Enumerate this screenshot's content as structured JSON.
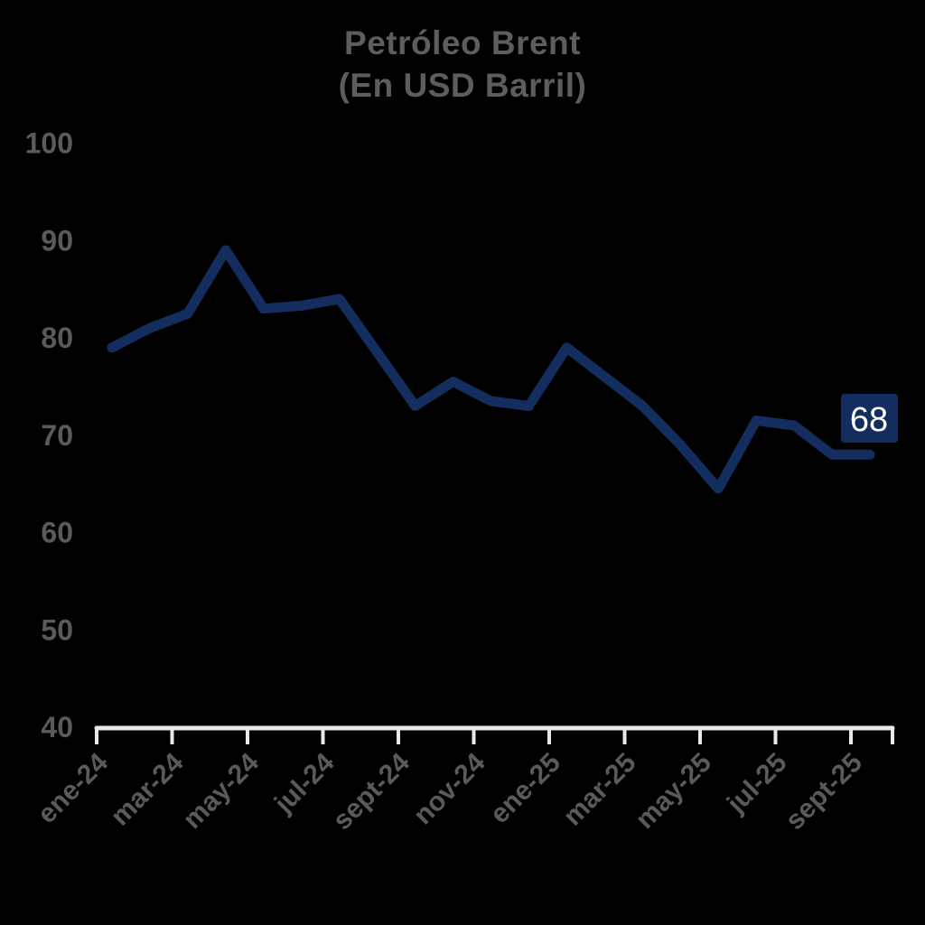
{
  "page": {
    "background": "#000000"
  },
  "chart_data": {
    "type": "line",
    "title": "Petróleo Brent",
    "subtitle": "(En USD Barril)",
    "xlabel": "",
    "ylabel": "",
    "x": [
      "ene-24",
      "feb-24",
      "mar-24",
      "abr-24",
      "may-24",
      "jun-24",
      "jul-24",
      "ago-24",
      "sept-24",
      "oct-24",
      "nov-24",
      "dic-24",
      "ene-25",
      "feb-25",
      "mar-25",
      "abr-25",
      "may-25",
      "jun-25",
      "jul-25",
      "ago-25",
      "sept-25"
    ],
    "values": [
      79,
      81,
      82.5,
      89,
      83,
      83.3,
      84,
      78.5,
      73,
      75.5,
      73.5,
      73,
      79,
      76,
      73,
      69,
      64.5,
      71.5,
      71,
      68,
      68
    ],
    "x_tick_labels": [
      "ene-24",
      "mar-24",
      "may-24",
      "jul-24",
      "sept-24",
      "nov-24",
      "ene-25",
      "mar-25",
      "may-25",
      "jul-25",
      "sept-25"
    ],
    "y_ticks": [
      100,
      90,
      80,
      70,
      60,
      50,
      40
    ],
    "ylim": [
      40,
      100
    ],
    "grid": false,
    "legend": false,
    "end_label": "68",
    "colors": {
      "line": "#132e5e",
      "end_label_box": "#132e5e",
      "end_label_text": "#ffffff",
      "axis": "#e9e9e9",
      "tick_text": "#5a5a5a",
      "title_text": "#5d5d5d",
      "background": "#000000"
    }
  }
}
